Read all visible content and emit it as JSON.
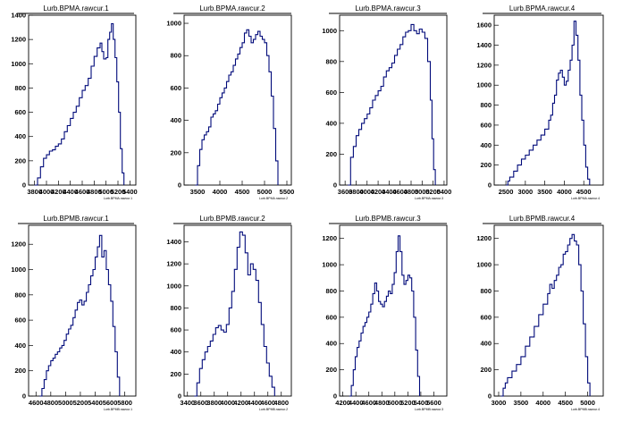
{
  "chart_data": [
    {
      "type": "histogram",
      "title": "Lurb.BPMA.rawcur.1",
      "xlabel": "Lurb.BPMA.rawcur.1",
      "xlim": [
        3700,
        5500
      ],
      "ylim": [
        0,
        1400
      ],
      "xticks": [
        3800,
        4000,
        4200,
        4400,
        4600,
        4800,
        5000,
        5200,
        5400
      ],
      "xtick_labels": [
        "3800",
        "4000",
        "4200",
        "4400",
        "4600",
        "4800",
        "5000",
        "5200",
        "5400"
      ],
      "yticks": [
        0,
        200,
        400,
        600,
        800,
        1000,
        1200,
        1400
      ],
      "points": [
        [
          3800,
          0
        ],
        [
          3850,
          60
        ],
        [
          3900,
          150
        ],
        [
          3950,
          220
        ],
        [
          4000,
          250
        ],
        [
          4050,
          280
        ],
        [
          4100,
          290
        ],
        [
          4150,
          320
        ],
        [
          4200,
          340
        ],
        [
          4250,
          380
        ],
        [
          4300,
          440
        ],
        [
          4350,
          490
        ],
        [
          4400,
          550
        ],
        [
          4450,
          600
        ],
        [
          4500,
          650
        ],
        [
          4550,
          720
        ],
        [
          4600,
          780
        ],
        [
          4650,
          820
        ],
        [
          4700,
          880
        ],
        [
          4750,
          980
        ],
        [
          4800,
          1060
        ],
        [
          4850,
          1130
        ],
        [
          4900,
          1170
        ],
        [
          4930,
          1100
        ],
        [
          4960,
          1040
        ],
        [
          5000,
          1050
        ],
        [
          5030,
          1200
        ],
        [
          5060,
          1260
        ],
        [
          5090,
          1330
        ],
        [
          5120,
          1200
        ],
        [
          5150,
          1050
        ],
        [
          5180,
          850
        ],
        [
          5210,
          600
        ],
        [
          5240,
          300
        ],
        [
          5270,
          100
        ],
        [
          5300,
          0
        ]
      ]
    },
    {
      "type": "histogram",
      "title": "Lurb.BPMA.rawcur.2",
      "xlabel": "Lurb.BPMA.rawcur.2",
      "xlim": [
        3200,
        5600
      ],
      "ylim": [
        0,
        1050
      ],
      "xticks": [
        3500,
        4000,
        4500,
        5000,
        5500
      ],
      "xtick_labels": [
        "3500",
        "4000",
        "4500",
        "5000",
        "5500"
      ],
      "yticks": [
        0,
        200,
        400,
        600,
        800,
        1000
      ],
      "points": [
        [
          3450,
          0
        ],
        [
          3500,
          120
        ],
        [
          3550,
          220
        ],
        [
          3600,
          280
        ],
        [
          3650,
          310
        ],
        [
          3700,
          330
        ],
        [
          3750,
          360
        ],
        [
          3800,
          420
        ],
        [
          3850,
          440
        ],
        [
          3900,
          460
        ],
        [
          3950,
          500
        ],
        [
          4000,
          540
        ],
        [
          4050,
          570
        ],
        [
          4100,
          600
        ],
        [
          4150,
          640
        ],
        [
          4200,
          680
        ],
        [
          4250,
          700
        ],
        [
          4300,
          740
        ],
        [
          4350,
          780
        ],
        [
          4400,
          810
        ],
        [
          4450,
          850
        ],
        [
          4500,
          880
        ],
        [
          4550,
          940
        ],
        [
          4600,
          960
        ],
        [
          4650,
          920
        ],
        [
          4700,
          880
        ],
        [
          4750,
          900
        ],
        [
          4800,
          930
        ],
        [
          4850,
          950
        ],
        [
          4900,
          920
        ],
        [
          4950,
          900
        ],
        [
          5000,
          880
        ],
        [
          5050,
          800
        ],
        [
          5100,
          700
        ],
        [
          5150,
          550
        ],
        [
          5200,
          350
        ],
        [
          5250,
          150
        ],
        [
          5300,
          0
        ]
      ]
    },
    {
      "type": "histogram",
      "title": "Lurb.BPMA.rawcur.3",
      "xlabel": "Lurb.BPMA.rawcur.3",
      "xlim": [
        3500,
        5450
      ],
      "ylim": [
        0,
        1100
      ],
      "xticks": [
        3600,
        3800,
        4000,
        4200,
        4400,
        4600,
        4800,
        5000,
        5200,
        5400
      ],
      "xtick_labels": [
        "3600",
        "3800",
        "4000",
        "4200",
        "4400",
        "4600",
        "4800",
        "5000",
        "5200",
        "5400"
      ],
      "yticks": [
        0,
        200,
        400,
        600,
        800,
        1000
      ],
      "points": [
        [
          3650,
          0
        ],
        [
          3700,
          180
        ],
        [
          3750,
          250
        ],
        [
          3800,
          320
        ],
        [
          3850,
          360
        ],
        [
          3900,
          400
        ],
        [
          3950,
          430
        ],
        [
          4000,
          460
        ],
        [
          4050,
          500
        ],
        [
          4100,
          550
        ],
        [
          4150,
          580
        ],
        [
          4200,
          610
        ],
        [
          4250,
          640
        ],
        [
          4300,
          700
        ],
        [
          4350,
          740
        ],
        [
          4400,
          760
        ],
        [
          4450,
          790
        ],
        [
          4500,
          840
        ],
        [
          4550,
          880
        ],
        [
          4600,
          910
        ],
        [
          4650,
          960
        ],
        [
          4700,
          990
        ],
        [
          4750,
          1000
        ],
        [
          4800,
          1040
        ],
        [
          4850,
          1000
        ],
        [
          4900,
          980
        ],
        [
          4950,
          1010
        ],
        [
          5000,
          990
        ],
        [
          5050,
          950
        ],
        [
          5100,
          800
        ],
        [
          5150,
          550
        ],
        [
          5180,
          300
        ],
        [
          5210,
          100
        ],
        [
          5240,
          0
        ]
      ]
    },
    {
      "type": "histogram",
      "title": "Lurb.BPMA.rawcur.4",
      "xlabel": "Lurb.BPMA.rawcur.4",
      "xlim": [
        2200,
        5000
      ],
      "ylim": [
        0,
        1700
      ],
      "xticks": [
        2500,
        3000,
        3500,
        4000,
        4500
      ],
      "xtick_labels": [
        "2500",
        "3000",
        "3500",
        "4000",
        "4500"
      ],
      "yticks": [
        0,
        200,
        400,
        600,
        800,
        1000,
        1200,
        1400,
        1600
      ],
      "points": [
        [
          2500,
          0
        ],
        [
          2550,
          40
        ],
        [
          2600,
          80
        ],
        [
          2700,
          140
        ],
        [
          2800,
          200
        ],
        [
          2900,
          260
        ],
        [
          3000,
          300
        ],
        [
          3100,
          350
        ],
        [
          3200,
          400
        ],
        [
          3300,
          450
        ],
        [
          3400,
          500
        ],
        [
          3500,
          560
        ],
        [
          3600,
          650
        ],
        [
          3650,
          700
        ],
        [
          3700,
          820
        ],
        [
          3750,
          900
        ],
        [
          3800,
          1050
        ],
        [
          3850,
          1120
        ],
        [
          3900,
          1150
        ],
        [
          3950,
          1080
        ],
        [
          4000,
          1000
        ],
        [
          4050,
          1040
        ],
        [
          4100,
          1150
        ],
        [
          4150,
          1250
        ],
        [
          4200,
          1400
        ],
        [
          4250,
          1640
        ],
        [
          4300,
          1500
        ],
        [
          4350,
          1250
        ],
        [
          4400,
          900
        ],
        [
          4450,
          650
        ],
        [
          4500,
          400
        ],
        [
          4550,
          180
        ],
        [
          4600,
          60
        ],
        [
          4650,
          0
        ]
      ]
    },
    {
      "type": "histogram",
      "title": "Lurb.BPMB.rawcur.1",
      "xlabel": "Lurb.BPMB.rawcur.1",
      "xlim": [
        4500,
        5950
      ],
      "ylim": [
        0,
        1350
      ],
      "xticks": [
        4600,
        4800,
        5000,
        5200,
        5400,
        5600,
        5800
      ],
      "xtick_labels": [
        "4600",
        "4800",
        "5000",
        "5200",
        "5400",
        "5600",
        "5800"
      ],
      "yticks": [
        0,
        200,
        400,
        600,
        800,
        1000,
        1200
      ],
      "points": [
        [
          4650,
          0
        ],
        [
          4680,
          60
        ],
        [
          4710,
          130
        ],
        [
          4740,
          200
        ],
        [
          4770,
          240
        ],
        [
          4800,
          280
        ],
        [
          4830,
          300
        ],
        [
          4860,
          330
        ],
        [
          4890,
          350
        ],
        [
          4920,
          380
        ],
        [
          4950,
          400
        ],
        [
          4980,
          440
        ],
        [
          5010,
          490
        ],
        [
          5040,
          530
        ],
        [
          5070,
          560
        ],
        [
          5100,
          620
        ],
        [
          5130,
          680
        ],
        [
          5160,
          740
        ],
        [
          5190,
          760
        ],
        [
          5220,
          720
        ],
        [
          5250,
          750
        ],
        [
          5280,
          820
        ],
        [
          5310,
          880
        ],
        [
          5340,
          950
        ],
        [
          5370,
          1000
        ],
        [
          5400,
          1100
        ],
        [
          5430,
          1180
        ],
        [
          5460,
          1270
        ],
        [
          5490,
          1100
        ],
        [
          5520,
          1150
        ],
        [
          5550,
          1000
        ],
        [
          5580,
          880
        ],
        [
          5610,
          750
        ],
        [
          5640,
          550
        ],
        [
          5670,
          350
        ],
        [
          5700,
          150
        ],
        [
          5730,
          0
        ]
      ]
    },
    {
      "type": "histogram",
      "title": "Lurb.BPMB.rawcur.2",
      "xlabel": "Lurb.BPMB.rawcur.2",
      "xlim": [
        3350,
        4950
      ],
      "ylim": [
        0,
        1550
      ],
      "xticks": [
        3400,
        3600,
        3800,
        4000,
        4200,
        4400,
        4600,
        4800
      ],
      "xtick_labels": [
        "3400",
        "3600",
        "3800",
        "4000",
        "4200",
        "4400",
        "4600",
        "4800"
      ],
      "yticks": [
        0,
        200,
        400,
        600,
        800,
        1000,
        1200,
        1400
      ],
      "points": [
        [
          3500,
          0
        ],
        [
          3540,
          120
        ],
        [
          3580,
          250
        ],
        [
          3620,
          330
        ],
        [
          3660,
          400
        ],
        [
          3700,
          450
        ],
        [
          3740,
          500
        ],
        [
          3780,
          560
        ],
        [
          3820,
          620
        ],
        [
          3860,
          640
        ],
        [
          3900,
          600
        ],
        [
          3940,
          580
        ],
        [
          3980,
          650
        ],
        [
          4020,
          800
        ],
        [
          4060,
          950
        ],
        [
          4100,
          1150
        ],
        [
          4140,
          1350
        ],
        [
          4180,
          1490
        ],
        [
          4220,
          1460
        ],
        [
          4260,
          1300
        ],
        [
          4300,
          1100
        ],
        [
          4340,
          1200
        ],
        [
          4380,
          1150
        ],
        [
          4420,
          1050
        ],
        [
          4460,
          850
        ],
        [
          4500,
          650
        ],
        [
          4540,
          450
        ],
        [
          4580,
          300
        ],
        [
          4620,
          180
        ],
        [
          4660,
          80
        ],
        [
          4700,
          0
        ]
      ]
    },
    {
      "type": "histogram",
      "title": "Lurb.BPMB.rawcur.3",
      "xlabel": "Lurb.BPMB.rawcur.3",
      "xlim": [
        4150,
        5800
      ],
      "ylim": [
        0,
        1300
      ],
      "xticks": [
        4200,
        4400,
        4600,
        4800,
        5000,
        5200,
        5400,
        5600
      ],
      "xtick_labels": [
        "4200",
        "4400",
        "4600",
        "4800",
        "5000",
        "5200",
        "5400",
        "5600"
      ],
      "yticks": [
        0,
        200,
        400,
        600,
        800,
        1000,
        1200
      ],
      "points": [
        [
          4300,
          0
        ],
        [
          4330,
          80
        ],
        [
          4360,
          200
        ],
        [
          4390,
          300
        ],
        [
          4420,
          370
        ],
        [
          4450,
          420
        ],
        [
          4480,
          480
        ],
        [
          4510,
          530
        ],
        [
          4540,
          560
        ],
        [
          4570,
          600
        ],
        [
          4600,
          640
        ],
        [
          4630,
          700
        ],
        [
          4660,
          780
        ],
        [
          4690,
          860
        ],
        [
          4720,
          800
        ],
        [
          4750,
          720
        ],
        [
          4780,
          700
        ],
        [
          4810,
          680
        ],
        [
          4840,
          720
        ],
        [
          4870,
          760
        ],
        [
          4900,
          800
        ],
        [
          4930,
          780
        ],
        [
          4960,
          850
        ],
        [
          4990,
          940
        ],
        [
          5020,
          1100
        ],
        [
          5050,
          1220
        ],
        [
          5080,
          1100
        ],
        [
          5110,
          920
        ],
        [
          5140,
          850
        ],
        [
          5170,
          880
        ],
        [
          5200,
          920
        ],
        [
          5230,
          900
        ],
        [
          5260,
          800
        ],
        [
          5290,
          600
        ],
        [
          5320,
          350
        ],
        [
          5350,
          150
        ],
        [
          5380,
          0
        ]
      ]
    },
    {
      "type": "histogram",
      "title": "Lurb.BPMB.rawcur.4",
      "xlabel": "Lurb.BPMB.rawcur.4",
      "xlim": [
        2900,
        5350
      ],
      "ylim": [
        0,
        1300
      ],
      "xticks": [
        3000,
        3500,
        4000,
        4500,
        5000
      ],
      "xtick_labels": [
        "3000",
        "3500",
        "4000",
        "4500",
        "5000"
      ],
      "yticks": [
        0,
        200,
        400,
        600,
        800,
        1000,
        1200
      ],
      "points": [
        [
          3050,
          0
        ],
        [
          3100,
          60
        ],
        [
          3150,
          100
        ],
        [
          3200,
          140
        ],
        [
          3300,
          190
        ],
        [
          3400,
          240
        ],
        [
          3500,
          300
        ],
        [
          3600,
          380
        ],
        [
          3700,
          450
        ],
        [
          3800,
          530
        ],
        [
          3900,
          620
        ],
        [
          4000,
          700
        ],
        [
          4100,
          780
        ],
        [
          4150,
          850
        ],
        [
          4200,
          820
        ],
        [
          4250,
          880
        ],
        [
          4300,
          920
        ],
        [
          4350,
          980
        ],
        [
          4400,
          1000
        ],
        [
          4450,
          1080
        ],
        [
          4500,
          1100
        ],
        [
          4550,
          1150
        ],
        [
          4600,
          1200
        ],
        [
          4650,
          1230
        ],
        [
          4700,
          1180
        ],
        [
          4750,
          1150
        ],
        [
          4800,
          1000
        ],
        [
          4850,
          800
        ],
        [
          4900,
          550
        ],
        [
          4950,
          300
        ],
        [
          5000,
          100
        ],
        [
          5050,
          0
        ]
      ]
    }
  ]
}
